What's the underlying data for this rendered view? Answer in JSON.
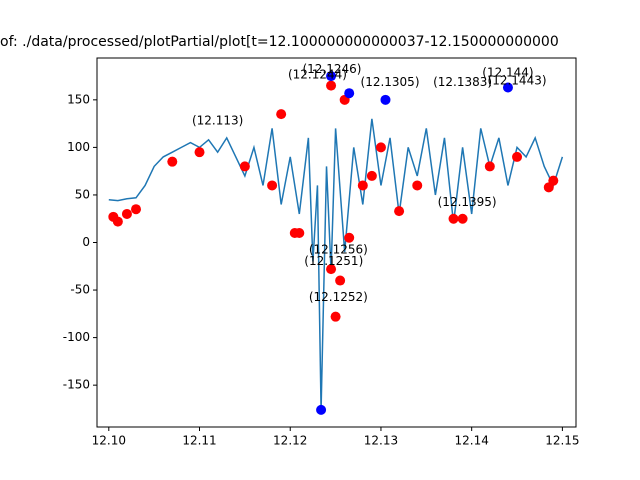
{
  "chart_data": {
    "type": "line",
    "title": "of: ./data/processed/plotPartial/plot[t=12.100000000000037-12.150000000000",
    "xlim": [
      12.0987,
      12.1515
    ],
    "ylim": [
      -194,
      194
    ],
    "xticks": [
      {
        "value": 12.1,
        "label": "12.10"
      },
      {
        "value": 12.11,
        "label": "12.11"
      },
      {
        "value": 12.12,
        "label": "12.12"
      },
      {
        "value": 12.13,
        "label": "12.13"
      },
      {
        "value": 12.14,
        "label": "12.14"
      },
      {
        "value": 12.15,
        "label": "12.15"
      }
    ],
    "yticks": [
      -150,
      -100,
      -50,
      0,
      50,
      100,
      150
    ],
    "series": [
      {
        "color": "#1f77b4",
        "x": [
          12.1,
          12.101,
          12.102,
          12.103,
          12.104,
          12.105,
          12.106,
          12.107,
          12.108,
          12.109,
          12.11,
          12.111,
          12.112,
          12.113,
          12.114,
          12.115,
          12.116,
          12.117,
          12.118,
          12.119,
          12.12,
          12.121,
          12.122,
          12.1225,
          12.123,
          12.1234,
          12.124,
          12.1245,
          12.125,
          12.126,
          12.127,
          12.128,
          12.129,
          12.13,
          12.131,
          12.132,
          12.133,
          12.134,
          12.135,
          12.136,
          12.137,
          12.138,
          12.139,
          12.14,
          12.141,
          12.142,
          12.143,
          12.144,
          12.145,
          12.146,
          12.147,
          12.148,
          12.149,
          12.15
        ],
        "values": [
          45,
          44,
          46,
          47,
          60,
          80,
          90,
          95,
          100,
          105,
          100,
          108,
          95,
          110,
          90,
          70,
          100,
          60,
          120,
          40,
          90,
          30,
          110,
          -20,
          60,
          -176,
          80,
          -30,
          120,
          -10,
          100,
          40,
          130,
          60,
          110,
          30,
          100,
          70,
          120,
          50,
          110,
          20,
          100,
          30,
          120,
          80,
          110,
          60,
          100,
          90,
          110,
          80,
          60,
          90
        ]
      }
    ],
    "red_points": {
      "color": "#ff0000",
      "x": [
        12.1005,
        12.101,
        12.102,
        12.103,
        12.107,
        12.11,
        12.115,
        12.118,
        12.1205,
        12.121,
        12.1245,
        12.125,
        12.1255,
        12.1265,
        12.128,
        12.129,
        12.132,
        12.134,
        12.138,
        12.139,
        12.142,
        12.145,
        12.1485,
        12.149,
        12.1245,
        12.126,
        12.119,
        12.13
      ],
      "values": [
        27,
        22,
        30,
        35,
        85,
        95,
        80,
        60,
        10,
        10,
        -28,
        -78,
        -40,
        5,
        60,
        70,
        33,
        60,
        25,
        25,
        80,
        90,
        58,
        65,
        165,
        150,
        135,
        100
      ]
    },
    "blue_points": {
      "color": "#0000ff",
      "x": [
        12.1234,
        12.1245,
        12.1265,
        12.144,
        12.1305
      ],
      "values": [
        -176,
        175,
        157,
        163,
        150
      ]
    },
    "annotations": [
      {
        "text": "(12.1246)",
        "x": 12.1246,
        "y": 182
      },
      {
        "text": "(12.1244)",
        "x": 12.123,
        "y": 176
      },
      {
        "text": "(12.1305)",
        "x": 12.131,
        "y": 168
      },
      {
        "text": "(12.1383)",
        "x": 12.139,
        "y": 168
      },
      {
        "text": "(12.144)",
        "x": 12.144,
        "y": 178
      },
      {
        "text": "(12.1443)",
        "x": 12.145,
        "y": 170
      },
      {
        "text": "(12.113)",
        "x": 12.112,
        "y": 128
      },
      {
        "text": "(12.1252)",
        "x": 12.1253,
        "y": -58
      },
      {
        "text": "(12.1395)",
        "x": 12.1395,
        "y": 42
      },
      {
        "text": "(12.1251)",
        "x": 12.1248,
        "y": -20
      },
      {
        "text": "(12.1256)",
        "x": 12.1253,
        "y": -8
      }
    ]
  }
}
